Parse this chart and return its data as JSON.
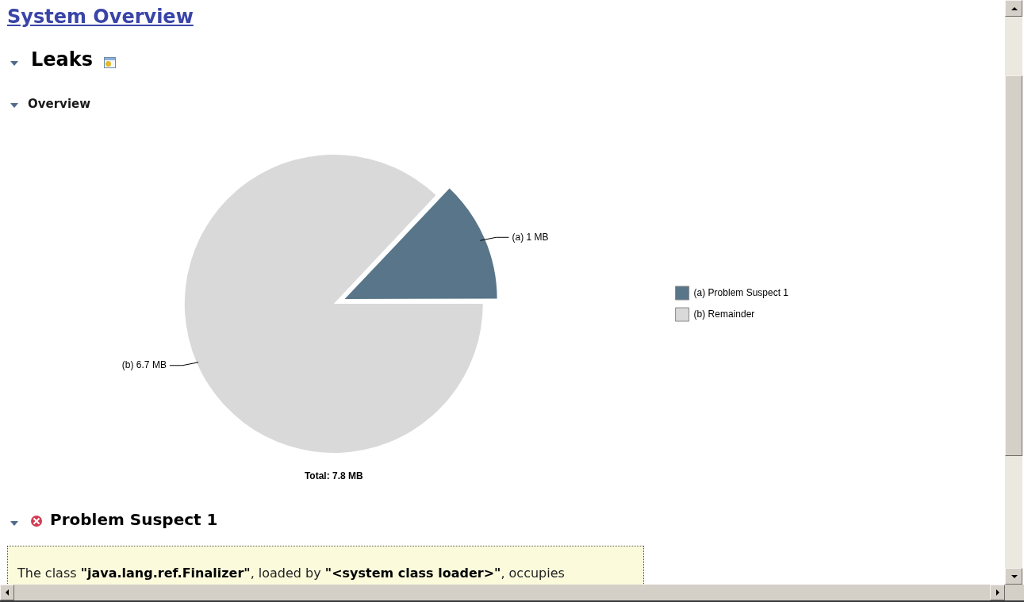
{
  "chart_data": {
    "type": "pie",
    "title": "System Overview",
    "subtitle": "Leaks",
    "categories": [
      "(a) Problem Suspect 1",
      "(b) Remainder"
    ],
    "values": [
      1,
      6.7
    ],
    "colors": [
      "#587589",
      "#d9d9d9"
    ],
    "value_labels": [
      "(a) 1 MB",
      "(b) 6.7 MB"
    ],
    "legend": "right",
    "annotations": [
      "Overview",
      "Total: 7.8 MB",
      "Problem Suspect 1",
      "The class \"java.lang.ref.Finalizer\", loaded by \"<system class loader>\", occupies"
    ]
  }
}
